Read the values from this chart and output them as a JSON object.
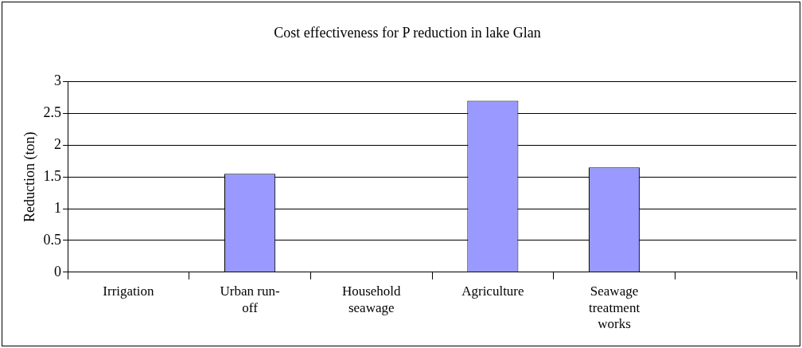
{
  "chart_data": {
    "type": "bar",
    "title": "Cost effectiveness for P reduction in lake Glan",
    "ylabel": "Reduction (ton)",
    "categories": [
      "Irrigation",
      "Urban run-off",
      "Household seawage",
      "Agriculture",
      "Seawage treatment works",
      null
    ],
    "values": [
      null,
      1.55,
      null,
      2.7,
      1.65,
      null
    ],
    "color": "#9999ff",
    "ylim": [
      0,
      3
    ],
    "yticks": [
      0,
      0.5,
      1,
      1.5,
      2,
      2.5,
      3
    ],
    "grid": "y",
    "legend": false
  }
}
